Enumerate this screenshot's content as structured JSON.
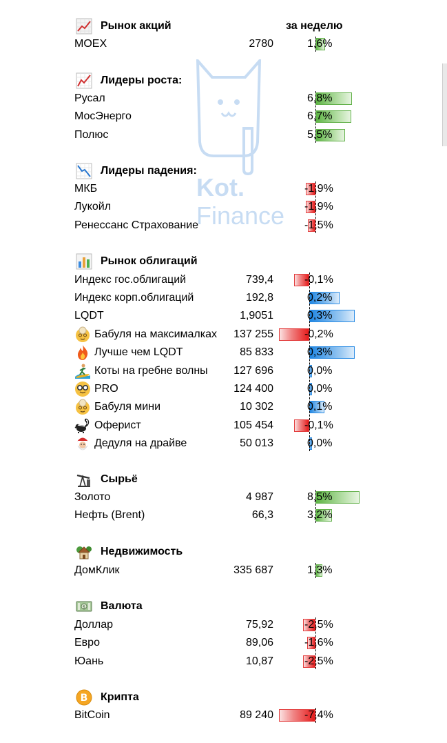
{
  "watermark": {
    "line1": "Kot.",
    "line2": "Finance"
  },
  "sections": [
    {
      "id": "stocks",
      "title": "Рынок акций",
      "header": "за неделю",
      "icon": "chart-up-icon",
      "rows": [
        {
          "name": "MOEX",
          "value": "2780",
          "pct": "1,6%",
          "change": 1.6,
          "icon": ""
        }
      ]
    },
    {
      "id": "gainers",
      "title": "Лидеры роста:",
      "header": "",
      "icon": "chart-rising-icon",
      "rows": [
        {
          "name": "Русал",
          "value": "",
          "pct": "6,8%",
          "change": 6.8,
          "icon": ""
        },
        {
          "name": "МосЭнерго",
          "value": "",
          "pct": "6,7%",
          "change": 6.7,
          "icon": ""
        },
        {
          "name": "Полюс",
          "value": "",
          "pct": "5,5%",
          "change": 5.5,
          "icon": ""
        }
      ]
    },
    {
      "id": "losers",
      "title": "Лидеры падения:",
      "header": "",
      "icon": "chart-falling-icon",
      "rows": [
        {
          "name": "МКБ",
          "value": "",
          "pct": "-1,9%",
          "change": -1.9,
          "icon": ""
        },
        {
          "name": "Лукойл",
          "value": "",
          "pct": "-1,9%",
          "change": -1.9,
          "icon": ""
        },
        {
          "name": "Ренессанс Страхование",
          "value": "",
          "pct": "-1,5%",
          "change": -1.5,
          "icon": ""
        }
      ]
    },
    {
      "id": "bonds",
      "title": "Рынок облигаций",
      "header": "",
      "icon": "bar-chart-icon",
      "rows": [
        {
          "name": "Индекс гос.облигаций",
          "value": "739,4",
          "pct": "-0,1%",
          "change": -0.1,
          "icon": ""
        },
        {
          "name": "Индекс корп.облигаций",
          "value": "192,8",
          "pct": "0,2%",
          "change": 0.2,
          "icon": ""
        },
        {
          "name": "LQDT",
          "value": "1,9051",
          "pct": "0,3%",
          "change": 0.3,
          "icon": ""
        },
        {
          "name": "Бабуля на максималках",
          "value": "137 255",
          "pct": "-0,2%",
          "change": -0.2,
          "icon": "grandma-icon"
        },
        {
          "name": "Лучше чем LQDT",
          "value": "85 833",
          "pct": "0,3%",
          "change": 0.3,
          "icon": "fire-icon"
        },
        {
          "name": "Коты на гребне волны",
          "value": "127 696",
          "pct": "0,0%",
          "change": 0.005,
          "icon": "surfer-icon"
        },
        {
          "name": "PRO",
          "value": "124 400",
          "pct": "0,0%",
          "change": 0.005,
          "icon": "nerd-icon"
        },
        {
          "name": "Бабуля мини",
          "value": "10 302",
          "pct": "0,1%",
          "change": 0.1,
          "icon": "grandma-icon"
        },
        {
          "name": "Оферист",
          "value": "105 454",
          "pct": "-0,1%",
          "change": -0.1,
          "icon": "skunk-icon"
        },
        {
          "name": "Дедуля на драйве",
          "value": "50 013",
          "pct": "0,0%",
          "change": 0.004,
          "icon": "santa-icon"
        }
      ]
    },
    {
      "id": "commodities",
      "title": "Сырьё",
      "header": "",
      "icon": "oil-pump-icon",
      "rows": [
        {
          "name": "Золото",
          "value": "4 987",
          "pct": "8,5%",
          "change": 8.5,
          "icon": ""
        },
        {
          "name": "Нефть (Brent)",
          "value": "66,3",
          "pct": "3,2%",
          "change": 3.2,
          "icon": ""
        }
      ]
    },
    {
      "id": "realty",
      "title": "Недвижимость",
      "header": "",
      "icon": "house-icon",
      "rows": [
        {
          "name": "ДомКлик",
          "value": "335 687",
          "pct": "1,3%",
          "change": 1.3,
          "icon": ""
        }
      ]
    },
    {
      "id": "fx",
      "title": "Валюта",
      "header": "",
      "icon": "banknote-icon",
      "rows": [
        {
          "name": "Доллар",
          "value": "75,92",
          "pct": "-2,5%",
          "change": -2.5,
          "icon": ""
        },
        {
          "name": "Евро",
          "value": "89,06",
          "pct": "-1,6%",
          "change": -1.6,
          "icon": ""
        },
        {
          "name": "Юань",
          "value": "10,87",
          "pct": "-2,5%",
          "change": -2.5,
          "icon": ""
        }
      ]
    },
    {
      "id": "crypto",
      "title": "Крипта",
      "header": "",
      "icon": "bitcoin-icon",
      "rows": [
        {
          "name": "BitCoin",
          "value": "89 240",
          "pct": "-7,4%",
          "change": -7.4,
          "icon": ""
        }
      ]
    }
  ]
}
